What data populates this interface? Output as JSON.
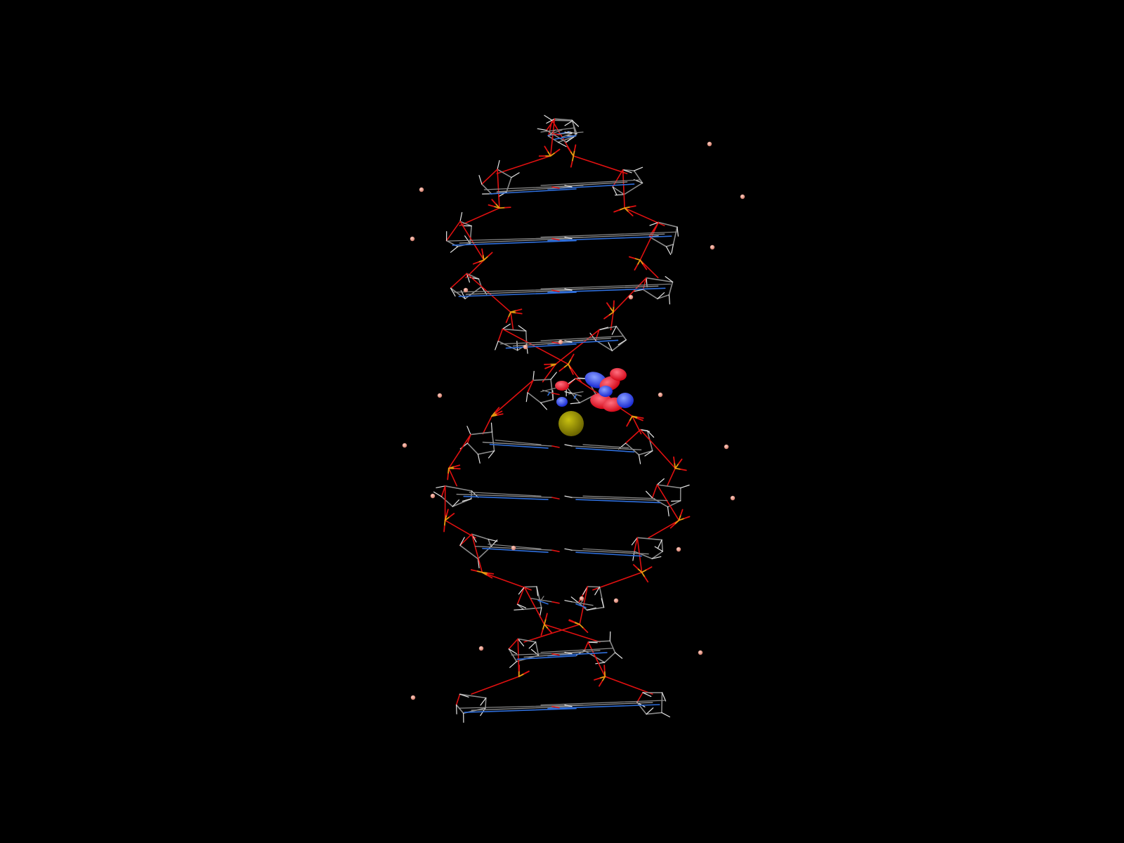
{
  "scene": {
    "background_color": "#000000",
    "subject": "dna-double-helix-ball-and-stick",
    "base_pair_count": 12,
    "colors": {
      "carbon_bond": "#8a8a8a",
      "hydrogen_bond": "#e6e6e6",
      "oxygen_bond": "#e01010",
      "nitrogen_bond": "#2f6fdc",
      "phosphorus_bond": "#e89a10",
      "ion_sphere": "#f0a090",
      "cation_sphere": "#9a9400",
      "orbital_positive": "#ff1a2a",
      "orbital_negative": "#2a48ff"
    }
  }
}
